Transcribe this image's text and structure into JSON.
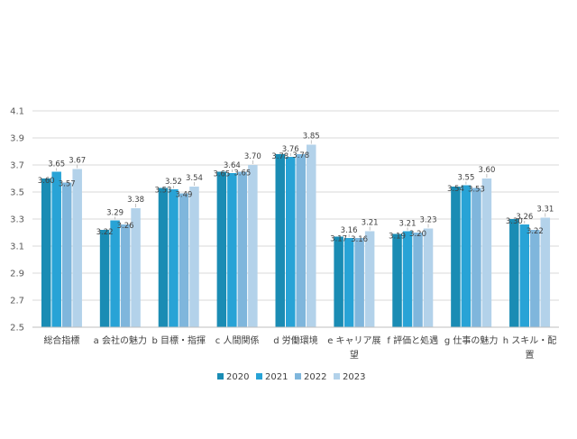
{
  "chart_data": {
    "type": "bar",
    "ylim": [
      2.5,
      4.1
    ],
    "yticks": [
      "2.5",
      "2.7",
      "2.9",
      "3.1",
      "3.3",
      "3.5",
      "3.7",
      "3.9",
      "4.1"
    ],
    "ytick_values": [
      2.5,
      2.7,
      2.9,
      3.1,
      3.3,
      3.5,
      3.7,
      3.9,
      4.1
    ],
    "grid": true,
    "legend_position": "bottom",
    "categories": [
      "総合指標",
      "a 会社の魅力",
      "b 目標・指揮",
      "c 人間関係",
      "d 労働環境",
      "e キャリア展望",
      "f 評価と処遇",
      "g 仕事の魅力",
      "h スキル・配置"
    ],
    "category_lines": [
      [
        "総合指標"
      ],
      [
        "a 会社の魅力"
      ],
      [
        "b 目標・指揮"
      ],
      [
        "c 人間関係"
      ],
      [
        "d 労働環境"
      ],
      [
        "e キャリア展",
        "望"
      ],
      [
        "f 評価と処遇"
      ],
      [
        "g 仕事の魅力"
      ],
      [
        "h スキル・配",
        "置"
      ]
    ],
    "series": [
      {
        "name": "2020",
        "color": "#1a8cb4",
        "values": [
          3.6,
          3.22,
          3.53,
          3.65,
          3.78,
          3.17,
          3.19,
          3.54,
          3.3
        ],
        "labels": [
          "3.60",
          "3.22",
          "3.53",
          "3.65",
          "3.78",
          "3.17",
          "3.19",
          "3.54",
          "3.30"
        ]
      },
      {
        "name": "2021",
        "color": "#28a3d6",
        "values": [
          3.65,
          3.29,
          3.52,
          3.64,
          3.76,
          3.16,
          3.21,
          3.55,
          3.26
        ],
        "labels": [
          "3.65",
          "3.29",
          "3.52",
          "3.64",
          "3.76",
          "3.16",
          "3.21",
          "3.55",
          "3.26"
        ]
      },
      {
        "name": "2022",
        "color": "#7fb6dc",
        "values": [
          3.57,
          3.26,
          3.49,
          3.65,
          3.78,
          3.16,
          3.2,
          3.53,
          3.22
        ],
        "labels": [
          "3.57",
          "3.26",
          "3.49",
          "3.65",
          "3.78",
          "3.16",
          "3.20",
          "3.53",
          "3.22"
        ]
      },
      {
        "name": "2023",
        "color": "#b3d2ea",
        "values": [
          3.67,
          3.38,
          3.54,
          3.7,
          3.85,
          3.21,
          3.23,
          3.6,
          3.31
        ],
        "labels": [
          "3.67",
          "3.38",
          "3.54",
          "3.70",
          "3.85",
          "3.21",
          "3.23",
          "3.60",
          "3.31"
        ]
      }
    ]
  }
}
